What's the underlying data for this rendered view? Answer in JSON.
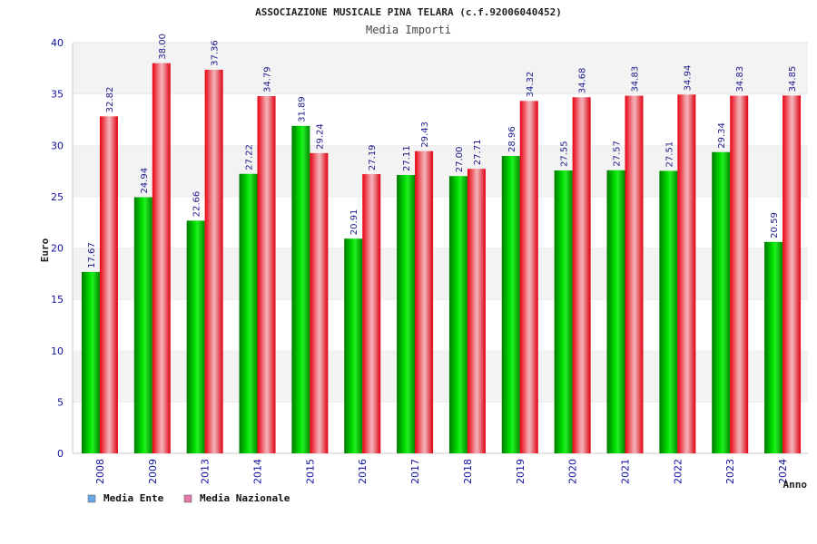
{
  "chart_data": {
    "type": "bar",
    "title": "ASSOCIAZIONE MUSICALE PINA TELARA (c.f.92006040452)",
    "subtitle": "Media Importi",
    "xlabel": "Anno",
    "ylabel": "Euro",
    "ylim": [
      0,
      40
    ],
    "yticks": [
      0,
      5,
      10,
      15,
      20,
      25,
      30,
      35,
      40
    ],
    "grid": true,
    "legend_position": "bottom-left",
    "categories": [
      "2008",
      "2009",
      "2013",
      "2014",
      "2015",
      "2016",
      "2017",
      "2018",
      "2019",
      "2020",
      "2021",
      "2022",
      "2023",
      "2024"
    ],
    "series": [
      {
        "name": "Media Ente",
        "legend_color": "#6aa8e8",
        "bar_color": "#00c000",
        "values": [
          17.67,
          24.94,
          22.66,
          27.22,
          31.89,
          20.91,
          27.11,
          27.0,
          28.96,
          27.55,
          27.57,
          27.51,
          29.34,
          20.59
        ],
        "labels": [
          "17.67",
          "24.94",
          "22.66",
          "27.22",
          "31.89",
          "20.91",
          "27.11",
          "27.00",
          "28.96",
          "27.55",
          "27.57",
          "27.51",
          "29.34",
          "20.59"
        ]
      },
      {
        "name": "Media Nazionale",
        "legend_color": "#e07aa8",
        "bar_color": "#ee1c2e",
        "values": [
          32.82,
          38.0,
          37.36,
          34.79,
          29.24,
          27.19,
          29.43,
          27.71,
          34.32,
          34.68,
          34.83,
          34.94,
          34.83,
          34.85
        ],
        "labels": [
          "32.82",
          "38.00",
          "37.36",
          "34.79",
          "29.24",
          "27.19",
          "29.43",
          "27.71",
          "34.32",
          "34.68",
          "34.83",
          "34.94",
          "34.83",
          "34.85"
        ]
      }
    ]
  },
  "colors": {
    "tick_text": "#1010a0",
    "value_label": "#1a1a8a",
    "band_light": "#f3f3f3",
    "band_white": "#ffffff",
    "axis": "#c8c8c8"
  }
}
